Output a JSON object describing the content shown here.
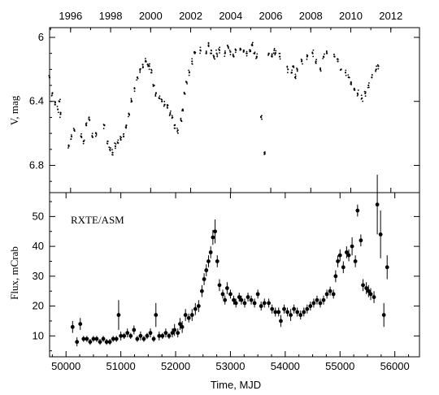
{
  "chart_data": [
    {
      "panel": "top",
      "type": "scatter",
      "ylabel": "V, mag",
      "top_axis_ticks": [
        "1996",
        "1998",
        "2000",
        "2002",
        "2004",
        "2006",
        "2008",
        "2010",
        "2012"
      ],
      "top_axis_years": [
        1996,
        1998,
        2000,
        2002,
        2004,
        2006,
        2008,
        2010,
        2012
      ],
      "y_ticks": [
        "6",
        "6.4",
        "6.8"
      ],
      "y_tick_values": [
        6.0,
        6.4,
        6.8
      ],
      "ylim": [
        6.0,
        6.95
      ],
      "y_inverted": true,
      "xlim": [
        49700,
        56450
      ],
      "x": [
        49700,
        49750,
        49800,
        49850,
        49880,
        49900,
        50050,
        50100,
        50150,
        50280,
        50320,
        50370,
        50420,
        50480,
        50550,
        50700,
        50760,
        50800,
        50850,
        50900,
        50950,
        51000,
        51050,
        51100,
        51150,
        51200,
        51250,
        51300,
        51350,
        51400,
        51450,
        51490,
        51520,
        51560,
        51600,
        51640,
        51700,
        51750,
        51800,
        51850,
        51900,
        51940,
        51980,
        52040,
        52100,
        52130,
        52160,
        52200,
        52250,
        52300,
        52350,
        52450,
        52560,
        52600,
        52650,
        52700,
        52750,
        52800,
        52900,
        52960,
        53000,
        53060,
        53100,
        53180,
        53240,
        53300,
        53360,
        53400,
        53440,
        53480,
        53560,
        53620,
        53700,
        53760,
        53800,
        53820,
        53900,
        54050,
        54120,
        54150,
        54180,
        54220,
        54300,
        54400,
        54500,
        54560,
        54640,
        54700,
        54760,
        54900,
        54960,
        55020,
        55100,
        55160,
        55200,
        55260,
        55320,
        55400,
        55460,
        55520,
        55580,
        55660,
        55700
      ],
      "values": [
        6.25,
        6.35,
        6.42,
        6.45,
        6.4,
        6.48,
        6.68,
        6.62,
        6.58,
        6.62,
        6.65,
        6.55,
        6.5,
        6.62,
        6.6,
        6.55,
        6.65,
        6.7,
        6.72,
        6.68,
        6.66,
        6.64,
        6.62,
        6.55,
        6.48,
        6.4,
        6.32,
        6.25,
        6.2,
        6.17,
        6.15,
        6.17,
        6.18,
        6.22,
        6.3,
        6.35,
        6.38,
        6.4,
        6.42,
        6.44,
        6.48,
        6.5,
        6.55,
        6.58,
        6.52,
        6.45,
        6.35,
        6.28,
        6.22,
        6.15,
        6.1,
        6.08,
        6.1,
        6.05,
        6.1,
        6.12,
        6.1,
        6.08,
        6.1,
        6.06,
        6.09,
        6.12,
        6.08,
        6.07,
        6.09,
        6.1,
        6.08,
        6.05,
        6.1,
        6.12,
        6.5,
        6.72,
        6.1,
        6.12,
        6.08,
        6.1,
        6.12,
        6.2,
        6.22,
        6.18,
        6.25,
        6.2,
        6.15,
        6.12,
        6.1,
        6.15,
        6.2,
        6.12,
        6.1,
        6.12,
        6.15,
        6.2,
        6.22,
        6.25,
        6.28,
        6.32,
        6.35,
        6.38,
        6.35,
        6.3,
        6.25,
        6.2,
        6.18
      ],
      "xlabel": ""
    },
    {
      "panel": "bottom",
      "type": "scatter",
      "annotation": "RXTE/ASM",
      "ylabel": "Flux, mCrab",
      "xlabel": "Time, MJD",
      "x_ticks": [
        "50000",
        "51000",
        "52000",
        "53000",
        "54000",
        "55000",
        "56000"
      ],
      "x_tick_values": [
        50000,
        51000,
        52000,
        53000,
        54000,
        55000,
        56000
      ],
      "y_ticks": [
        "10",
        "20",
        "30",
        "40",
        "50"
      ],
      "y_tick_values": [
        10,
        20,
        30,
        40,
        50
      ],
      "ylim": [
        3,
        58
      ],
      "xlim": [
        49700,
        56450
      ],
      "x": [
        50120,
        50200,
        50260,
        50320,
        50380,
        50440,
        50500,
        50560,
        50620,
        50680,
        50740,
        50800,
        50860,
        50920,
        50960,
        51000,
        51060,
        51120,
        51180,
        51240,
        51300,
        51360,
        51420,
        51480,
        51540,
        51600,
        51640,
        51700,
        51760,
        51820,
        51880,
        51940,
        51980,
        52040,
        52080,
        52120,
        52180,
        52240,
        52300,
        52360,
        52420,
        52480,
        52520,
        52560,
        52600,
        52640,
        52680,
        52720,
        52760,
        52800,
        52860,
        52900,
        52940,
        53000,
        53060,
        53100,
        53160,
        53200,
        53260,
        53320,
        53380,
        53440,
        53500,
        53560,
        53620,
        53700,
        53760,
        53820,
        53880,
        53920,
        53980,
        54040,
        54100,
        54160,
        54220,
        54280,
        54340,
        54400,
        54460,
        54520,
        54580,
        54640,
        54700,
        54760,
        54820,
        54880,
        54920,
        54960,
        55000,
        55060,
        55120,
        55160,
        55220,
        55280,
        55320,
        55380,
        55420,
        55480,
        55520,
        55560,
        55620,
        55680,
        55740,
        55800,
        55860
      ],
      "values": [
        13,
        8,
        14,
        9,
        9,
        8,
        9,
        9,
        8,
        9,
        8,
        8,
        9,
        9,
        17,
        10,
        10,
        11,
        10,
        12,
        9,
        10,
        9,
        10,
        11,
        9,
        17,
        10,
        10,
        11,
        10,
        11,
        12,
        11,
        14,
        13,
        17,
        16,
        17,
        19,
        20,
        25,
        29,
        32,
        35,
        38,
        43,
        45,
        35,
        27,
        24,
        22,
        26,
        24,
        22,
        21,
        23,
        22,
        21,
        23,
        22,
        21,
        24,
        20,
        21,
        21,
        19,
        18,
        18,
        15,
        19,
        18,
        17,
        19,
        18,
        17,
        18,
        19,
        20,
        21,
        22,
        21,
        22,
        24,
        25,
        24,
        30,
        35,
        37,
        33,
        38,
        37,
        40,
        35,
        52,
        42,
        27,
        26,
        25,
        24,
        23,
        54,
        44,
        17,
        33
      ],
      "err": [
        2,
        1.5,
        2,
        1,
        1,
        1,
        1,
        1,
        1,
        1,
        1,
        1,
        1,
        1,
        5,
        1.5,
        1,
        1.5,
        1,
        1.5,
        1,
        1.5,
        1,
        1,
        1.5,
        1,
        4,
        1.5,
        1,
        1.5,
        1,
        1.5,
        2,
        1.5,
        2,
        2,
        2,
        1.5,
        2,
        2,
        2,
        2,
        2,
        2,
        2,
        2,
        2.5,
        4,
        2,
        2,
        1.5,
        1.5,
        2,
        1.5,
        1.5,
        1.5,
        1.5,
        1.5,
        1.5,
        1.5,
        1.5,
        1.5,
        1.5,
        1.5,
        1.5,
        1.5,
        1.5,
        1.5,
        1.5,
        2,
        1.5,
        1.5,
        2,
        1.5,
        1.5,
        1.5,
        1.5,
        1.5,
        1.5,
        1.5,
        1.5,
        1.5,
        1.5,
        1.5,
        1.5,
        1.5,
        2,
        2,
        2,
        2,
        2,
        2,
        3,
        2,
        2,
        2,
        2,
        2,
        2,
        2,
        2,
        10,
        8,
        4,
        4
      ]
    }
  ]
}
